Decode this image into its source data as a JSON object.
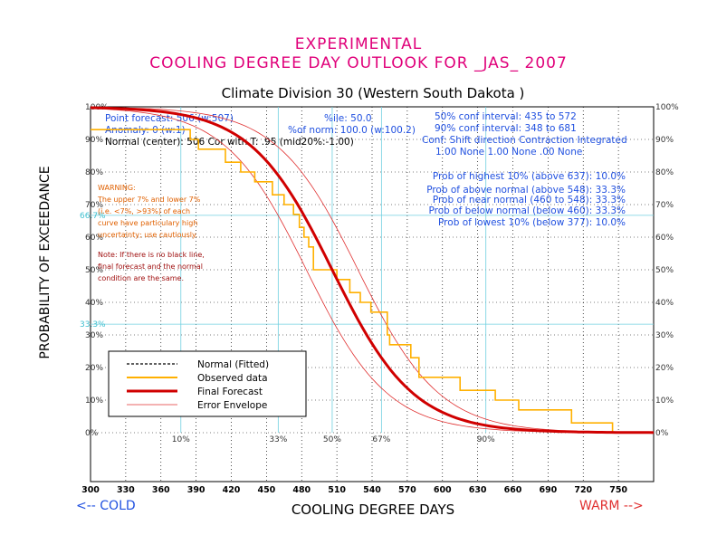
{
  "header": {
    "line1": "EXPERIMENTAL",
    "line2": "COOLING DEGREE DAY OUTLOOK FOR _JAS_ 2007",
    "subtitle": "Climate Division 30 (Western South Dakota )"
  },
  "info_left": [
    "Point forecast: 506 (w:507)",
    "Anomaly: 0 (w:1)",
    "Normal (center): 506  Cor with T: .95 (mid20%:-1.00)"
  ],
  "info_mid": [
    "%ile: 50.0",
    "%of norm: 100.0 (w:100.2)"
  ],
  "info_right": [
    "50% conf interval: 435 to 572",
    "90% conf interval: 348 to 681",
    "Conf: Shift direction   Contraction   Integrated",
    "1.00 None       1.00 None    .00 None"
  ],
  "probs": [
    "Prob of highest 10% (above 637): 10.0%",
    "Prob of above normal (above 548): 33.3%",
    "Prob of near normal (460 to 548): 33.3%",
    "Prob of below normal (below 460): 33.3%",
    "Prob of lowest 10% (below 377): 10.0%"
  ],
  "warning": [
    "WARNING:",
    "The upper 7% and lower 7%",
    "(i.e. <7%, >93%) of each",
    "curve have particulary high",
    "uncertainty; use cautiously."
  ],
  "note": [
    "Note: If there is no black line,",
    "final forecast and  the normal",
    "condition are the same."
  ],
  "legend": [
    {
      "label": "Normal (Fitted)",
      "color": "#000000",
      "style": "dash"
    },
    {
      "label": "Observed data",
      "color": "#ffb000",
      "style": "solid"
    },
    {
      "label": "Final Forecast",
      "color": "#d00000",
      "style": "thick"
    },
    {
      "label": "Error Envelope",
      "color": "#e03030",
      "style": "thin"
    }
  ],
  "cold_label": "<-- COLD",
  "warm_label": "WARM -->",
  "colors": {
    "title": "#e0007a",
    "forecast": "#d00000",
    "observed": "#ffb000",
    "envelope": "#e03030",
    "cyan": "#40c0d0",
    "blue": "#2050e0"
  },
  "chart_data": {
    "type": "line",
    "title": "COOLING DEGREE DAY OUTLOOK FOR _JAS_ 2007",
    "xlabel": "COOLING DEGREE DAYS",
    "ylabel": "PROBABILITY OF EXCEEDANCE",
    "xlim": [
      300,
      780
    ],
    "ylim": [
      -15,
      100
    ],
    "x_ticks": [
      300,
      330,
      360,
      390,
      420,
      450,
      480,
      510,
      540,
      570,
      600,
      630,
      660,
      690,
      720,
      750
    ],
    "y_ticks": [
      0,
      10,
      20,
      30,
      40,
      50,
      60,
      70,
      80,
      90,
      100
    ],
    "y_tick_labels": [
      "0%",
      "10%",
      "20%",
      "30%",
      "40%",
      "50%",
      "60%",
      "70%",
      "80%",
      "90%",
      "100%"
    ],
    "percentile_markers": [
      {
        "label": "10%",
        "x": 377
      },
      {
        "label": "33%",
        "x": 460
      },
      {
        "label": "50%",
        "x": 506
      },
      {
        "label": "67%",
        "x": 548
      },
      {
        "label": "90%",
        "x": 637
      }
    ],
    "ref_lines": [
      {
        "label": "66.7%",
        "y": 66.7
      },
      {
        "label": "33.3%",
        "y": 33.3
      }
    ],
    "forecast": {
      "center": 506,
      "scale": 63
    },
    "envelope": {
      "offset": 22
    },
    "observed": [
      {
        "x": 300,
        "y": 93
      },
      {
        "x": 385,
        "y": 93
      },
      {
        "x": 385,
        "y": 90
      },
      {
        "x": 392,
        "y": 90
      },
      {
        "x": 392,
        "y": 87
      },
      {
        "x": 415,
        "y": 87
      },
      {
        "x": 415,
        "y": 83
      },
      {
        "x": 428,
        "y": 83
      },
      {
        "x": 428,
        "y": 80
      },
      {
        "x": 440,
        "y": 80
      },
      {
        "x": 440,
        "y": 77
      },
      {
        "x": 455,
        "y": 77
      },
      {
        "x": 455,
        "y": 73
      },
      {
        "x": 465,
        "y": 73
      },
      {
        "x": 465,
        "y": 70
      },
      {
        "x": 473,
        "y": 70
      },
      {
        "x": 473,
        "y": 67
      },
      {
        "x": 478,
        "y": 67
      },
      {
        "x": 478,
        "y": 63
      },
      {
        "x": 482,
        "y": 63
      },
      {
        "x": 482,
        "y": 60
      },
      {
        "x": 486,
        "y": 60
      },
      {
        "x": 486,
        "y": 57
      },
      {
        "x": 490,
        "y": 57
      },
      {
        "x": 490,
        "y": 50
      },
      {
        "x": 510,
        "y": 50
      },
      {
        "x": 510,
        "y": 47
      },
      {
        "x": 521,
        "y": 47
      },
      {
        "x": 521,
        "y": 43
      },
      {
        "x": 530,
        "y": 43
      },
      {
        "x": 530,
        "y": 40
      },
      {
        "x": 539,
        "y": 40
      },
      {
        "x": 539,
        "y": 37
      },
      {
        "x": 553,
        "y": 37
      },
      {
        "x": 553,
        "y": 30
      },
      {
        "x": 555,
        "y": 30
      },
      {
        "x": 555,
        "y": 27
      },
      {
        "x": 573,
        "y": 27
      },
      {
        "x": 573,
        "y": 23
      },
      {
        "x": 580,
        "y": 23
      },
      {
        "x": 580,
        "y": 17
      },
      {
        "x": 615,
        "y": 17
      },
      {
        "x": 615,
        "y": 13
      },
      {
        "x": 645,
        "y": 13
      },
      {
        "x": 645,
        "y": 10
      },
      {
        "x": 665,
        "y": 10
      },
      {
        "x": 665,
        "y": 7
      },
      {
        "x": 710,
        "y": 7
      },
      {
        "x": 710,
        "y": 3
      },
      {
        "x": 745,
        "y": 3
      },
      {
        "x": 745,
        "y": 0
      },
      {
        "x": 780,
        "y": 0
      }
    ]
  }
}
